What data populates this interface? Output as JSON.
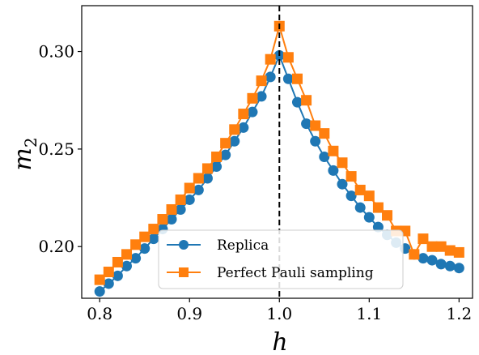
{
  "chart_data": {
    "type": "line",
    "title": "",
    "xlabel": "h",
    "ylabel_base": "m",
    "ylabel_sub": "2",
    "xlim": [
      0.78,
      1.215
    ],
    "ylim": [
      0.1735,
      0.3235
    ],
    "xticks": [
      0.8,
      0.9,
      1.0,
      1.1,
      1.2
    ],
    "xtick_labels": [
      "0.8",
      "0.9",
      "1.0",
      "1.1",
      "1.2"
    ],
    "yticks": [
      0.2,
      0.25,
      0.3
    ],
    "ytick_labels": [
      "0.20",
      "0.25",
      "0.30"
    ],
    "vline": {
      "x": 1.0,
      "style": "dashed",
      "color": "#000000"
    },
    "legend_position": "lower-center",
    "grid": false,
    "series": [
      {
        "name": "Replica",
        "marker": "circle",
        "color": "#1f77b4",
        "x": [
          0.8,
          0.81,
          0.82,
          0.83,
          0.84,
          0.85,
          0.86,
          0.87,
          0.88,
          0.89,
          0.9,
          0.91,
          0.92,
          0.93,
          0.94,
          0.95,
          0.96,
          0.97,
          0.98,
          0.99,
          1.0,
          1.01,
          1.02,
          1.03,
          1.04,
          1.05,
          1.06,
          1.07,
          1.08,
          1.09,
          1.1,
          1.11,
          1.12,
          1.13,
          1.14,
          1.15,
          1.16,
          1.17,
          1.18,
          1.19,
          1.2
        ],
        "y": [
          0.177,
          0.181,
          0.185,
          0.19,
          0.194,
          0.199,
          0.204,
          0.209,
          0.214,
          0.219,
          0.224,
          0.229,
          0.235,
          0.241,
          0.247,
          0.254,
          0.261,
          0.269,
          0.277,
          0.287,
          0.298,
          0.286,
          0.274,
          0.263,
          0.254,
          0.246,
          0.239,
          0.232,
          0.226,
          0.22,
          0.215,
          0.21,
          0.206,
          0.202,
          0.199,
          0.196,
          0.194,
          0.193,
          0.191,
          0.19,
          0.189
        ]
      },
      {
        "name": "Perfect Pauli sampling",
        "marker": "square",
        "color": "#ff7f0e",
        "x": [
          0.8,
          0.81,
          0.82,
          0.83,
          0.84,
          0.85,
          0.86,
          0.87,
          0.88,
          0.89,
          0.9,
          0.91,
          0.92,
          0.93,
          0.94,
          0.95,
          0.96,
          0.97,
          0.98,
          0.99,
          1.0,
          1.01,
          1.02,
          1.03,
          1.04,
          1.05,
          1.06,
          1.07,
          1.08,
          1.09,
          1.1,
          1.11,
          1.12,
          1.13,
          1.14,
          1.15,
          1.16,
          1.17,
          1.18,
          1.19,
          1.2
        ],
        "y": [
          0.183,
          0.187,
          0.192,
          0.196,
          0.201,
          0.205,
          0.209,
          0.214,
          0.219,
          0.224,
          0.23,
          0.235,
          0.24,
          0.246,
          0.253,
          0.26,
          0.268,
          0.276,
          0.285,
          0.296,
          0.313,
          0.297,
          0.286,
          0.275,
          0.262,
          0.258,
          0.249,
          0.243,
          0.236,
          0.229,
          0.226,
          0.22,
          0.216,
          0.208,
          0.208,
          0.196,
          0.204,
          0.2,
          0.2,
          0.198,
          0.197
        ]
      }
    ]
  }
}
